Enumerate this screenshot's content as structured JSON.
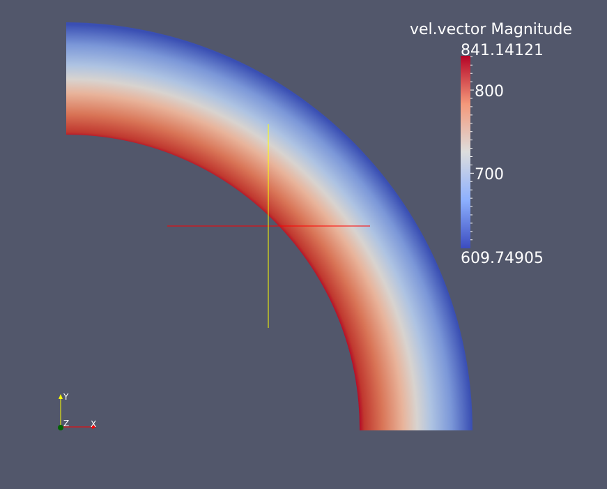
{
  "view": {
    "background": "#52576b",
    "field_name": "vel.vector Magnitude"
  },
  "colorbar": {
    "title": "vel.vector Magnitude",
    "max_label": "841.14121",
    "min_label": "609.74905",
    "range": [
      609.74905,
      841.14121
    ],
    "tick_labels": [
      {
        "label": "800",
        "value": 800
      },
      {
        "label": "700",
        "value": 700
      }
    ],
    "colormap": [
      "#3b4cc0",
      "#dddddd",
      "#b40426"
    ]
  },
  "axes_triad": {
    "x_label": "X",
    "y_label": "Y",
    "z_label": "Z",
    "x_color": "#ff0000",
    "y_color": "#ffff00",
    "z_color": "#006400"
  },
  "crosshair": {
    "horizontal_color": "#ff0000",
    "vertical_color": "#ffff00"
  }
}
